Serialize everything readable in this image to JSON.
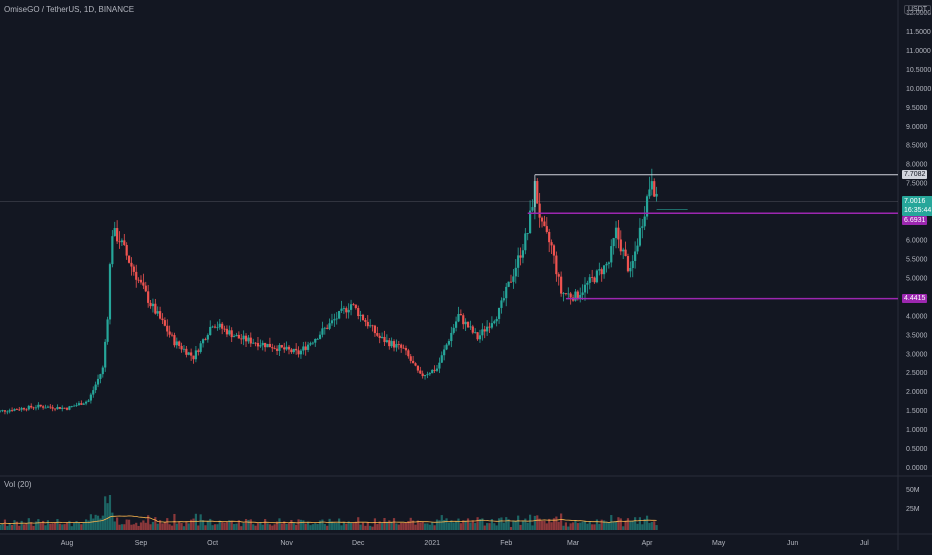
{
  "header": {
    "symbol_title": "OmiseGO / TetherUS, 1D, BINANCE",
    "currency_badge": "USDT"
  },
  "volume_pane": {
    "label": "Vol (20)",
    "axis_labels": [
      "50M",
      "25M"
    ]
  },
  "price_axis": {
    "labels": [
      "12.0000",
      "11.5000",
      "11.0000",
      "10.5000",
      "10.0000",
      "9.5000",
      "9.0000",
      "8.5000",
      "8.0000",
      "7.5000",
      "7.0000",
      "6.5000",
      "6.0000",
      "5.5000",
      "5.0000",
      "4.5000",
      "4.0000",
      "3.5000",
      "3.0000",
      "2.5000",
      "2.0000",
      "1.5000",
      "1.0000",
      "0.5000",
      "0.0000"
    ]
  },
  "time_axis": {
    "labels": [
      "Aug",
      "Sep",
      "Oct",
      "Nov",
      "Dec",
      "2021",
      "Feb",
      "Mar",
      "Apr",
      "May",
      "Jun",
      "Jul"
    ]
  },
  "price_tags": {
    "high_line": "7.7082",
    "current_price": "7.0016",
    "countdown": "16:35:44",
    "resistance": "6.6931",
    "support": "4.4415"
  },
  "colors": {
    "background": "#131722",
    "up": "#26a69a",
    "down": "#ef5350",
    "level_line": "#9c27b0",
    "high_line": "#d1d4dc",
    "volume_ma": "#ffb74d"
  },
  "chart_data": {
    "type": "candlestick",
    "title": "OmiseGO / TetherUS, 1D, BINANCE",
    "ylim": [
      0,
      12.2
    ],
    "x_ticks": [
      "Aug",
      "Sep",
      "Oct",
      "Nov",
      "Dec",
      "2021",
      "Feb",
      "Mar",
      "Apr",
      "May",
      "Jun",
      "Jul"
    ],
    "approx_close_path": [
      {
        "date": "2020-07-01",
        "close": 1.45
      },
      {
        "date": "2020-07-20",
        "close": 1.6
      },
      {
        "date": "2020-08-01",
        "close": 1.55
      },
      {
        "date": "2020-08-10",
        "close": 1.75
      },
      {
        "date": "2020-08-16",
        "close": 2.6
      },
      {
        "date": "2020-08-18",
        "close": 4.0
      },
      {
        "date": "2020-08-19",
        "close": 5.3
      },
      {
        "date": "2020-08-20",
        "close": 6.2
      },
      {
        "date": "2020-08-23",
        "close": 6.0
      },
      {
        "date": "2020-08-28",
        "close": 5.3
      },
      {
        "date": "2020-09-05",
        "close": 4.3
      },
      {
        "date": "2020-09-15",
        "close": 3.3
      },
      {
        "date": "2020-09-23",
        "close": 2.9
      },
      {
        "date": "2020-10-01",
        "close": 3.8
      },
      {
        "date": "2020-10-12",
        "close": 3.4
      },
      {
        "date": "2020-10-25",
        "close": 3.2
      },
      {
        "date": "2020-11-06",
        "close": 3.0
      },
      {
        "date": "2020-11-18",
        "close": 3.7
      },
      {
        "date": "2020-11-28",
        "close": 4.3
      },
      {
        "date": "2020-12-10",
        "close": 3.4
      },
      {
        "date": "2020-12-20",
        "close": 3.1
      },
      {
        "date": "2020-12-27",
        "close": 2.4
      },
      {
        "date": "2021-01-03",
        "close": 2.6
      },
      {
        "date": "2021-01-12",
        "close": 4.0
      },
      {
        "date": "2021-01-20",
        "close": 3.4
      },
      {
        "date": "2021-01-29",
        "close": 4.1
      },
      {
        "date": "2021-02-05",
        "close": 5.3
      },
      {
        "date": "2021-02-10",
        "close": 6.2
      },
      {
        "date": "2021-02-13",
        "close": 7.4
      },
      {
        "date": "2021-02-16",
        "close": 6.3
      },
      {
        "date": "2021-02-20",
        "close": 5.8
      },
      {
        "date": "2021-02-24",
        "close": 4.6
      },
      {
        "date": "2021-03-02",
        "close": 4.5
      },
      {
        "date": "2021-03-10",
        "close": 5.0
      },
      {
        "date": "2021-03-16",
        "close": 5.4
      },
      {
        "date": "2021-03-19",
        "close": 6.2
      },
      {
        "date": "2021-03-25",
        "close": 5.1
      },
      {
        "date": "2021-03-31",
        "close": 6.8
      },
      {
        "date": "2021-04-03",
        "close": 7.7
      },
      {
        "date": "2021-04-05",
        "close": 7.0
      }
    ],
    "horizontal_levels": [
      7.7082,
      6.6931,
      4.4415
    ],
    "current_price": 7.0016
  }
}
